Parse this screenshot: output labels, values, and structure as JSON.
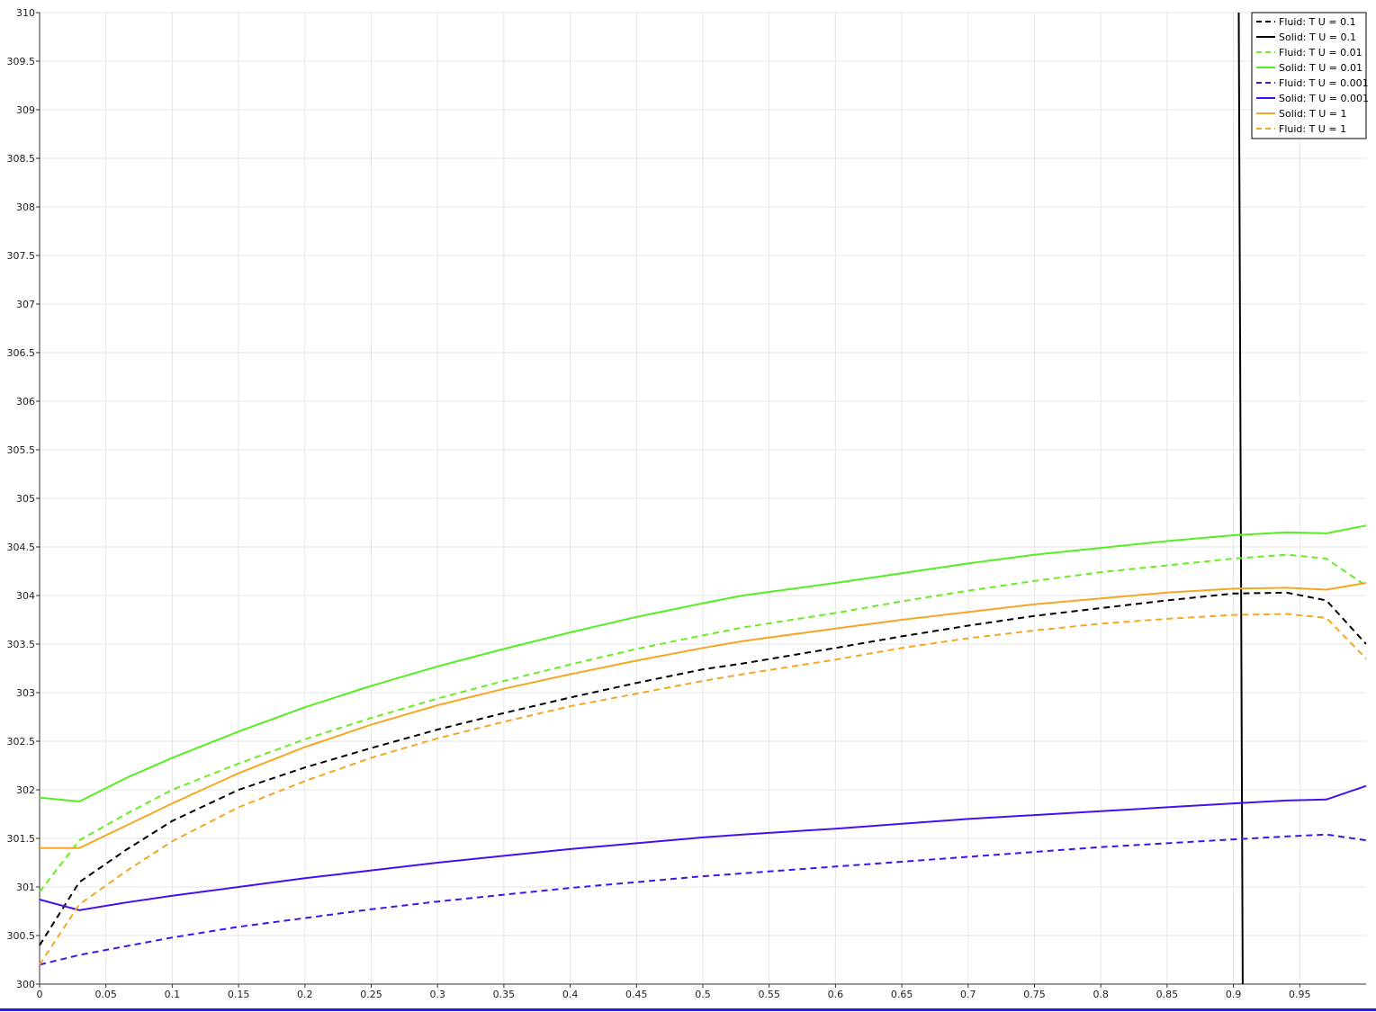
{
  "chart_data": {
    "type": "line",
    "title": "",
    "xlabel": "",
    "ylabel": "",
    "xlim": [
      0,
      1
    ],
    "ylim": [
      300,
      310
    ],
    "grid": true,
    "legend_position": "top-right",
    "x_ticks": [
      "0",
      "0.05",
      "0.1",
      "0.15",
      "0.2",
      "0.25",
      "0.3",
      "0.35",
      "0.4",
      "0.45",
      "0.5",
      "0.55",
      "0.6",
      "0.65",
      "0.7",
      "0.75",
      "0.8",
      "0.85",
      "0.9",
      "0.95"
    ],
    "y_ticks": [
      "300",
      "300.5",
      "301",
      "301.5",
      "302",
      "302.5",
      "303",
      "303.5",
      "304",
      "304.5",
      "305",
      "305.5",
      "306",
      "306.5",
      "307",
      "307.5",
      "308",
      "308.5",
      "309",
      "309.5",
      "310"
    ],
    "x": [
      0,
      0.03,
      0.065,
      0.1,
      0.15,
      0.2,
      0.25,
      0.3,
      0.35,
      0.4,
      0.45,
      0.5,
      0.53,
      0.6,
      0.65,
      0.7,
      0.75,
      0.8,
      0.85,
      0.9,
      0.94,
      0.97,
      1.0
    ],
    "series": [
      {
        "name": "Fluid: T U = 0.1",
        "color": "#000000",
        "dash": true,
        "values": [
          300.4,
          301.05,
          301.38,
          301.68,
          302.0,
          302.23,
          302.43,
          302.62,
          302.79,
          302.95,
          303.1,
          303.24,
          303.3,
          303.46,
          303.58,
          303.69,
          303.79,
          303.87,
          303.95,
          304.02,
          304.03,
          303.95,
          303.5
        ]
      },
      {
        "name": "Solid: T U = 0.1",
        "color": "#000000",
        "dash": false,
        "vertical": true,
        "points": [
          [
            0.904,
            310
          ],
          [
            0.907,
            300
          ]
        ]
      },
      {
        "name": "Fluid: T U = 0.01",
        "color": "#66ee22",
        "dash": true,
        "values": [
          300.95,
          301.48,
          301.75,
          302.0,
          302.27,
          302.52,
          302.74,
          302.94,
          303.12,
          303.29,
          303.45,
          303.59,
          303.67,
          303.82,
          303.94,
          304.05,
          304.15,
          304.24,
          304.31,
          304.38,
          304.42,
          304.38,
          304.1
        ]
      },
      {
        "name": "Solid: T U = 0.01",
        "color": "#55ee22",
        "dash": false,
        "values": [
          301.92,
          301.88,
          302.12,
          302.33,
          302.6,
          302.85,
          303.07,
          303.27,
          303.45,
          303.62,
          303.78,
          303.92,
          304.0,
          304.13,
          304.23,
          304.33,
          304.42,
          304.49,
          304.56,
          304.62,
          304.65,
          304.64,
          304.72
        ]
      },
      {
        "name": "Fluid: T U = 0.001",
        "color": "#4411ee",
        "dash": true,
        "values": [
          300.2,
          300.3,
          300.39,
          300.48,
          300.59,
          300.68,
          300.77,
          300.85,
          300.92,
          300.99,
          301.05,
          301.11,
          301.14,
          301.21,
          301.26,
          301.31,
          301.36,
          301.41,
          301.45,
          301.49,
          301.52,
          301.54,
          301.48
        ]
      },
      {
        "name": "Solid: T U = 0.001",
        "color": "#4411ee",
        "dash": false,
        "values": [
          300.87,
          300.76,
          300.84,
          300.91,
          301.0,
          301.09,
          301.17,
          301.25,
          301.32,
          301.39,
          301.45,
          301.51,
          301.54,
          301.6,
          301.65,
          301.7,
          301.74,
          301.78,
          301.82,
          301.86,
          301.89,
          301.9,
          302.04
        ]
      },
      {
        "name": "Solid: T U = 1",
        "color": "#f5a623",
        "dash": false,
        "values": [
          301.4,
          301.4,
          301.63,
          301.86,
          302.17,
          302.44,
          302.67,
          302.87,
          303.04,
          303.19,
          303.33,
          303.46,
          303.53,
          303.66,
          303.75,
          303.83,
          303.91,
          303.97,
          304.03,
          304.07,
          304.08,
          304.06,
          304.13
        ]
      },
      {
        "name": "Fluid: T U = 1",
        "color": "#f5a623",
        "dash": true,
        "values": [
          300.2,
          300.82,
          301.16,
          301.47,
          301.82,
          302.09,
          302.33,
          302.53,
          302.7,
          302.86,
          302.99,
          303.12,
          303.19,
          303.34,
          303.46,
          303.56,
          303.64,
          303.71,
          303.76,
          303.8,
          303.81,
          303.77,
          303.35
        ]
      }
    ]
  }
}
